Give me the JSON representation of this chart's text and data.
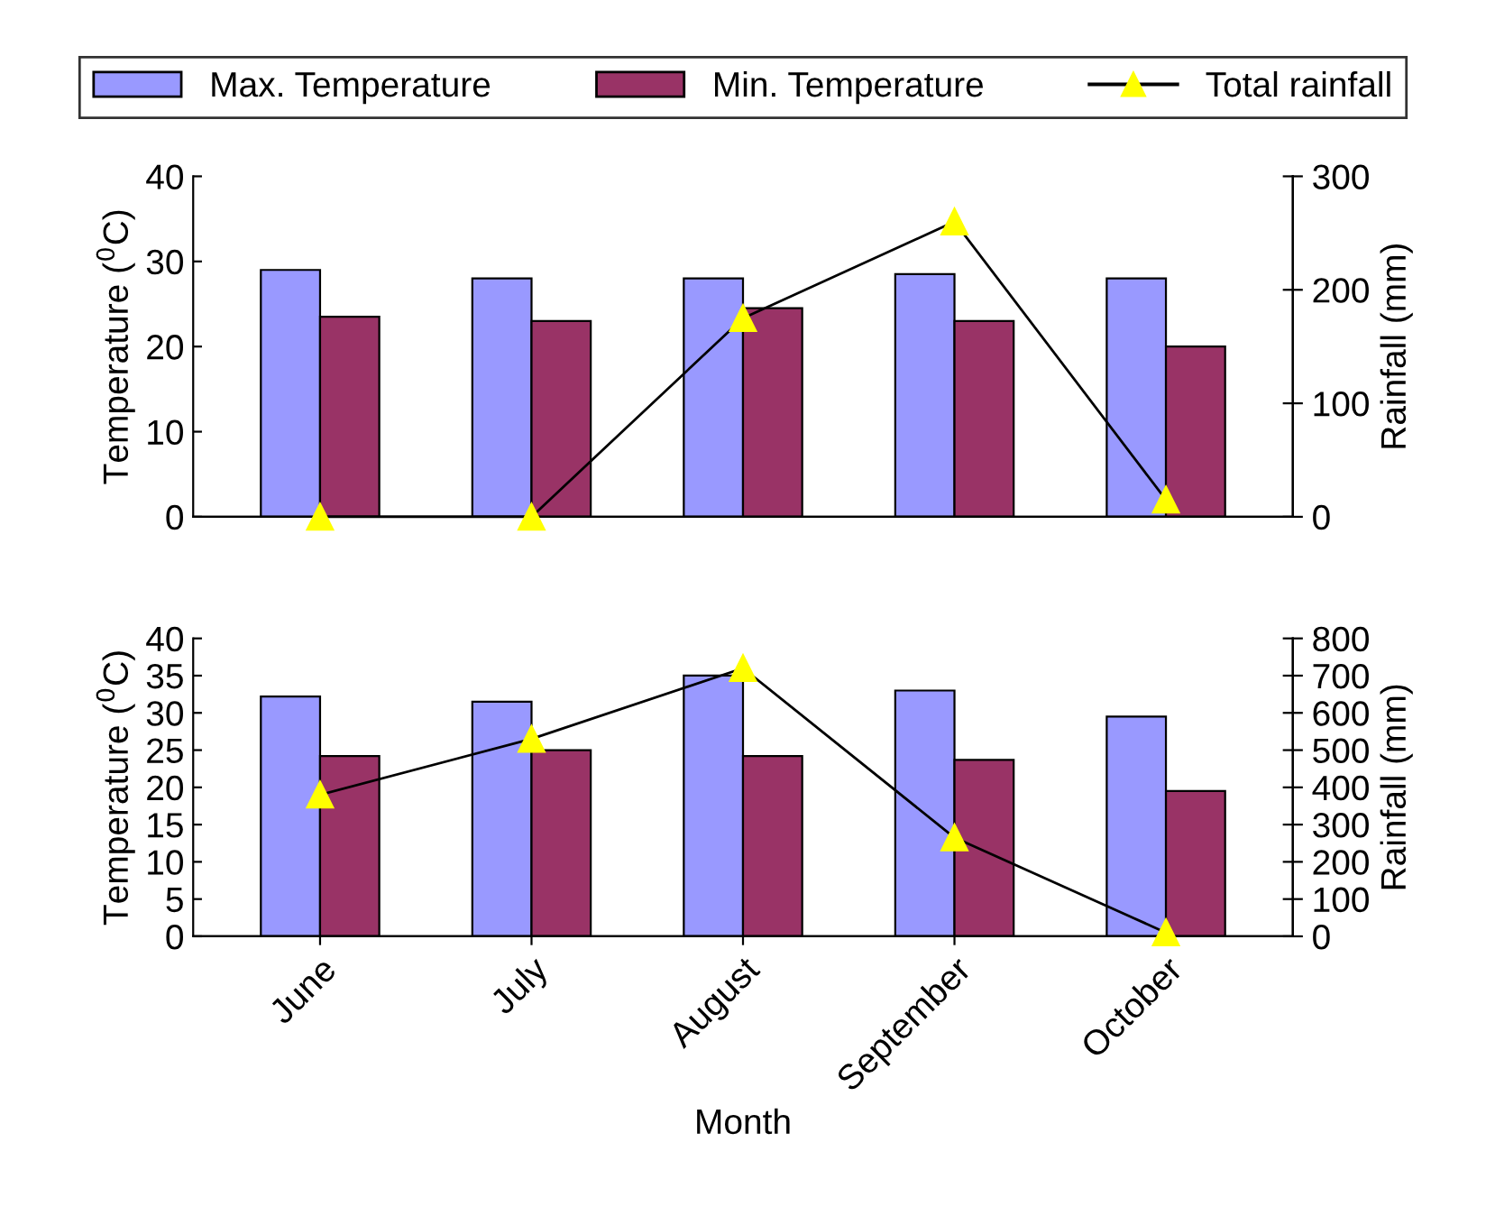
{
  "chart_data": [
    {
      "type": "bar",
      "categories": [
        null,
        null,
        null,
        null,
        null
      ],
      "ylabel": "Temperature ($^{0}$C)",
      "y2label": "Rainfall (mm)",
      "ylim": [
        0,
        40
      ],
      "yticks": [
        0,
        10,
        20,
        30,
        40
      ],
      "y2lim": [
        0,
        300
      ],
      "y2ticks": [
        0,
        100,
        200,
        300
      ],
      "legend": "top",
      "marker": "triangle",
      "series": [
        {
          "name": "Max. Temperature",
          "color": "#9999ff",
          "values": [
            29,
            28,
            28,
            28.5,
            28
          ]
        },
        {
          "name": "Min. Temperature",
          "color": "#993366",
          "values": [
            23.5,
            23,
            24.5,
            23,
            20
          ]
        },
        {
          "name": "Total rainfall",
          "type": "line",
          "axis": "y2",
          "color": "#ffff00",
          "values": [
            0,
            0,
            175,
            260,
            15
          ]
        }
      ]
    },
    {
      "type": "bar",
      "categories": [
        "June",
        "July",
        "August",
        "September",
        "October"
      ],
      "xlabel": "Month",
      "ylabel": "Temperature ($^{0}$C)",
      "y2label": "Rainfall (mm)",
      "ylim": [
        0,
        40
      ],
      "yticks": [
        0,
        5,
        10,
        15,
        20,
        25,
        30,
        35,
        40
      ],
      "y2lim": [
        0,
        800
      ],
      "y2ticks": [
        0,
        100,
        200,
        300,
        400,
        500,
        600,
        700,
        800
      ],
      "marker": "triangle",
      "series": [
        {
          "color": "#9999ff",
          "values": [
            32.2,
            31.5,
            35,
            33,
            29.5
          ]
        },
        {
          "color": "#993366",
          "values": [
            24.2,
            25,
            24.2,
            23.7,
            19.5
          ]
        },
        {
          "type": "line",
          "axis": "y2",
          "color": "#ffff00",
          "values": [
            380,
            530,
            720,
            265,
            10
          ]
        }
      ]
    }
  ]
}
